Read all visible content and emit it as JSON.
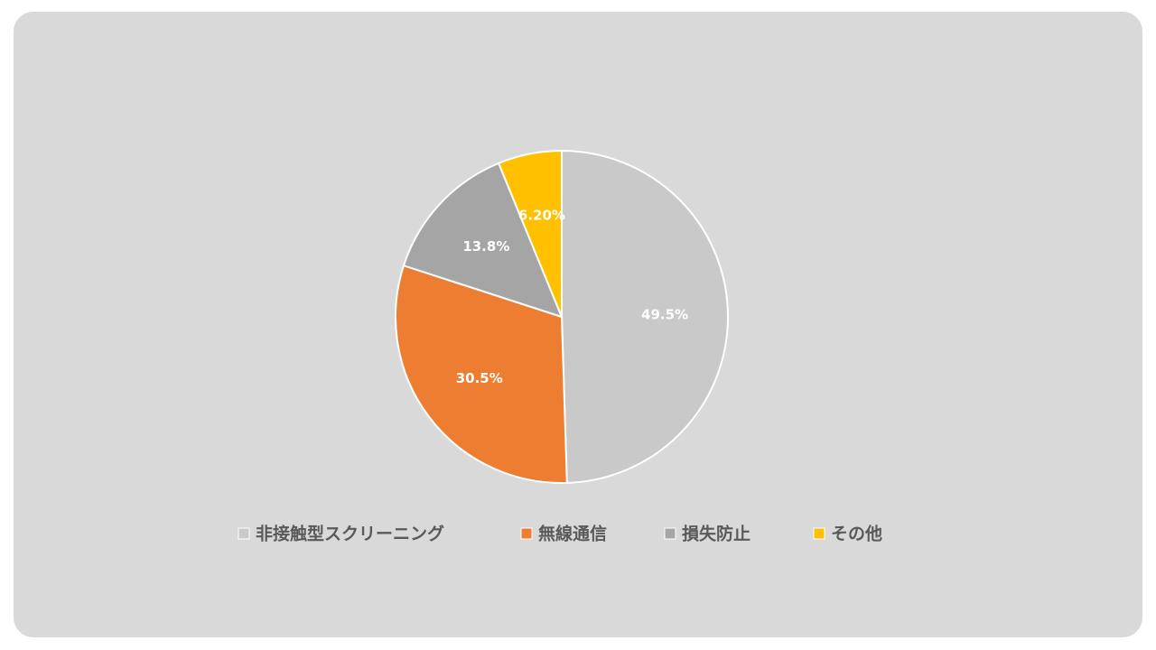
{
  "chart_data": {
    "type": "pie",
    "categories": [
      "非接触型スクリーニング",
      "無線通信",
      "損失防止",
      "その他"
    ],
    "values": [
      49.5,
      30.5,
      13.8,
      6.2
    ],
    "value_labels": [
      "49.5%",
      "30.5%",
      "13.8%",
      "6.20%"
    ],
    "colors": [
      "#c9c9c9",
      "#ed7d31",
      "#a5a5a5",
      "#ffc000"
    ],
    "legend": "bottom"
  }
}
